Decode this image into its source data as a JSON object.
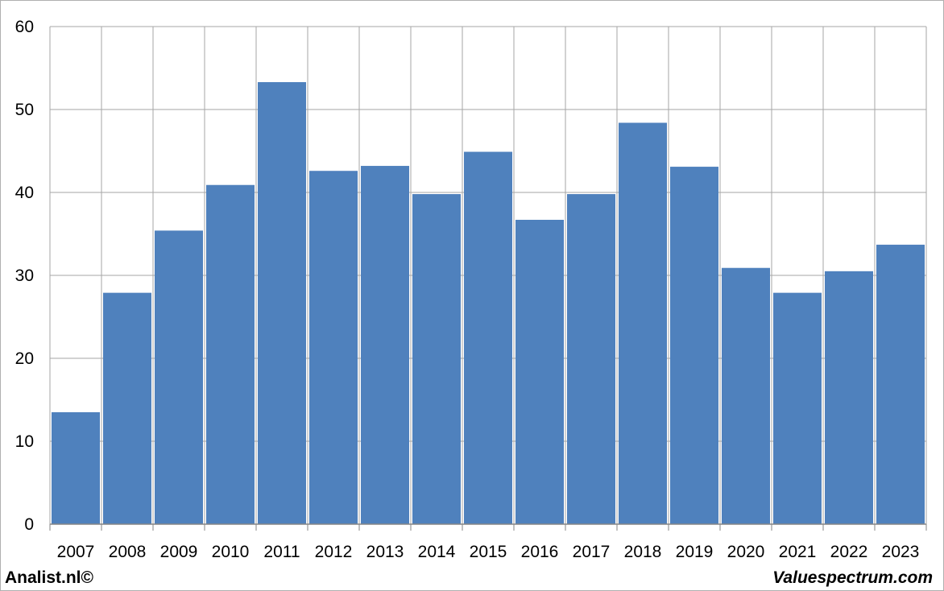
{
  "footer": {
    "left_text": "Analist.nl©",
    "right_text": "Valuespectrum.com"
  },
  "chart_data": {
    "type": "bar",
    "categories": [
      "2007",
      "2008",
      "2009",
      "2010",
      "2011",
      "2012",
      "2013",
      "2014",
      "2015",
      "2016",
      "2017",
      "2018",
      "2019",
      "2020",
      "2021",
      "2022",
      "2023"
    ],
    "values": [
      13.5,
      27.9,
      35.4,
      40.9,
      53.3,
      42.6,
      43.2,
      39.8,
      44.9,
      36.7,
      39.8,
      48.4,
      43.1,
      30.9,
      27.9,
      30.5,
      33.7
    ],
    "ylim": [
      0,
      60
    ],
    "yticks": [
      0,
      10,
      20,
      30,
      40,
      50,
      60
    ],
    "grid": true,
    "bar_color": "#4f81bd",
    "grid_color": "#a6a6a6"
  }
}
